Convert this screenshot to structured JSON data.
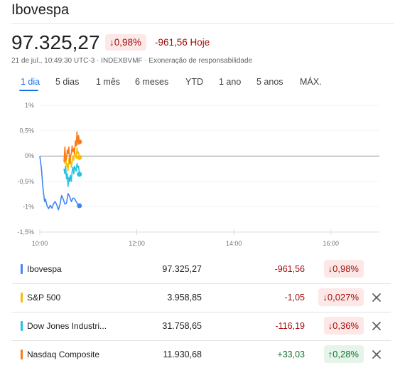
{
  "header": {
    "title": "Ibovespa",
    "price": "97.325,27",
    "pct_change": "↓0,98%",
    "change_today": "-961,56 Hoje",
    "meta": "21 de jul., 10:49:30 UTC-3 · INDEXBVMF · Exoneração de responsabilidade"
  },
  "tabs": [
    "1 dia",
    "5 dias",
    "1 mês",
    "6 meses",
    "YTD",
    "1 ano",
    "5 anos",
    "MÁX."
  ],
  "active_tab": "1 dia",
  "colors": {
    "ibovespa": "#4285f4",
    "sp500": "#fbbc04",
    "dow": "#24c1e0",
    "nasdaq": "#fa7b17",
    "negative": "#a50e0e",
    "positive": "#137333",
    "accent": "#1a73e8"
  },
  "chart_data": {
    "type": "line",
    "x_unit": "time",
    "y_unit": "%",
    "ylim": [
      -1.5,
      1
    ],
    "yticks": [
      "1%",
      "0,5%",
      "0%",
      "-0,5%",
      "-1%",
      "-1,5%"
    ],
    "ytick_values": [
      1,
      0.5,
      0,
      -0.5,
      -1,
      -1.5
    ],
    "xticks": [
      "10:00",
      "12:00",
      "14:00",
      "16:00"
    ],
    "xtick_values": [
      "10:00",
      "12:00",
      "14:00",
      "16:00"
    ],
    "xlim": [
      "10:00",
      "17:00"
    ],
    "baseline": 0,
    "series": [
      {
        "name": "Ibovespa",
        "color": "#4285f4",
        "points": [
          [
            "10:00",
            0
          ],
          [
            "10:02",
            -0.25
          ],
          [
            "10:04",
            -0.65
          ],
          [
            "10:06",
            -0.9
          ],
          [
            "10:07",
            -0.85
          ],
          [
            "10:09",
            -0.98
          ],
          [
            "10:11",
            -1.04
          ],
          [
            "10:13",
            -0.97
          ],
          [
            "10:15",
            -1.03
          ],
          [
            "10:17",
            -0.94
          ],
          [
            "10:19",
            -0.9
          ],
          [
            "10:21",
            -0.96
          ],
          [
            "10:23",
            -1.06
          ],
          [
            "10:25",
            -0.95
          ],
          [
            "10:27",
            -0.78
          ],
          [
            "10:29",
            -0.85
          ],
          [
            "10:31",
            -0.95
          ],
          [
            "10:33",
            -0.93
          ],
          [
            "10:35",
            -0.74
          ],
          [
            "10:37",
            -0.8
          ],
          [
            "10:39",
            -0.9
          ],
          [
            "10:41",
            -0.83
          ],
          [
            "10:43",
            -0.84
          ],
          [
            "10:45",
            -0.9
          ],
          [
            "10:47",
            -0.95
          ],
          [
            "10:49",
            -0.98
          ]
        ]
      },
      {
        "name": "S&P 500",
        "color": "#fbbc04",
        "points": [
          [
            "10:30",
            -0.05
          ],
          [
            "10:31",
            -0.15
          ],
          [
            "10:32",
            0.03
          ],
          [
            "10:33",
            -0.2
          ],
          [
            "10:34",
            -0.15
          ],
          [
            "10:35",
            -0.3
          ],
          [
            "10:36",
            -0.05
          ],
          [
            "10:37",
            -0.12
          ],
          [
            "10:38",
            -0.05
          ],
          [
            "10:39",
            -0.22
          ],
          [
            "10:40",
            -0.12
          ],
          [
            "10:41",
            0.0
          ],
          [
            "10:42",
            -0.08
          ],
          [
            "10:43",
            0.1
          ],
          [
            "10:44",
            0.02
          ],
          [
            "10:45",
            -0.05
          ],
          [
            "10:46",
            0.16
          ],
          [
            "10:47",
            0.05
          ],
          [
            "10:48",
            0.08
          ],
          [
            "10:49",
            -0.027
          ]
        ]
      },
      {
        "name": "Dow Jones Industri...",
        "color": "#24c1e0",
        "points": [
          [
            "10:30",
            -0.25
          ],
          [
            "10:31",
            -0.35
          ],
          [
            "10:32",
            -0.2
          ],
          [
            "10:33",
            -0.45
          ],
          [
            "10:34",
            -0.35
          ],
          [
            "10:35",
            -0.6
          ],
          [
            "10:36",
            -0.42
          ],
          [
            "10:37",
            -0.5
          ],
          [
            "10:38",
            -0.38
          ],
          [
            "10:39",
            -0.5
          ],
          [
            "10:40",
            -0.3
          ],
          [
            "10:41",
            -0.22
          ],
          [
            "10:42",
            -0.35
          ],
          [
            "10:43",
            -0.2
          ],
          [
            "10:44",
            -0.25
          ],
          [
            "10:45",
            -0.3
          ],
          [
            "10:46",
            -0.15
          ],
          [
            "10:47",
            -0.22
          ],
          [
            "10:48",
            -0.2
          ],
          [
            "10:49",
            -0.36
          ]
        ]
      },
      {
        "name": "Nasdaq Composite",
        "color": "#fa7b17",
        "points": [
          [
            "10:30",
            -0.12
          ],
          [
            "10:31",
            0.18
          ],
          [
            "10:32",
            -0.1
          ],
          [
            "10:33",
            -0.05
          ],
          [
            "10:34",
            0.12
          ],
          [
            "10:35",
            0.05
          ],
          [
            "10:36",
            0.18
          ],
          [
            "10:37",
            -0.15
          ],
          [
            "10:38",
            0.0
          ],
          [
            "10:39",
            0.05
          ],
          [
            "10:40",
            0.2
          ],
          [
            "10:41",
            0.08
          ],
          [
            "10:42",
            0.15
          ],
          [
            "10:43",
            0.05
          ],
          [
            "10:44",
            0.3
          ],
          [
            "10:45",
            0.2
          ],
          [
            "10:46",
            0.48
          ],
          [
            "10:47",
            0.22
          ],
          [
            "10:48",
            0.4
          ],
          [
            "10:49",
            0.28
          ]
        ]
      }
    ]
  },
  "table": [
    {
      "name": "Ibovespa",
      "value": "97.325,27",
      "change": "-961,56",
      "pct": "↓0,98%",
      "direction": "neg",
      "removable": false,
      "color": "#4285f4"
    },
    {
      "name": "S&P 500",
      "value": "3.958,85",
      "change": "-1,05",
      "pct": "↓0,027%",
      "direction": "neg",
      "removable": true,
      "color": "#fbbc04"
    },
    {
      "name": "Dow Jones Industri...",
      "value": "31.758,65",
      "change": "-116,19",
      "pct": "↓0,36%",
      "direction": "neg",
      "removable": true,
      "color": "#24c1e0"
    },
    {
      "name": "Nasdaq Composite",
      "value": "11.930,68",
      "change": "+33,03",
      "pct": "↑0,28%",
      "direction": "pos",
      "removable": true,
      "color": "#fa7b17"
    }
  ]
}
